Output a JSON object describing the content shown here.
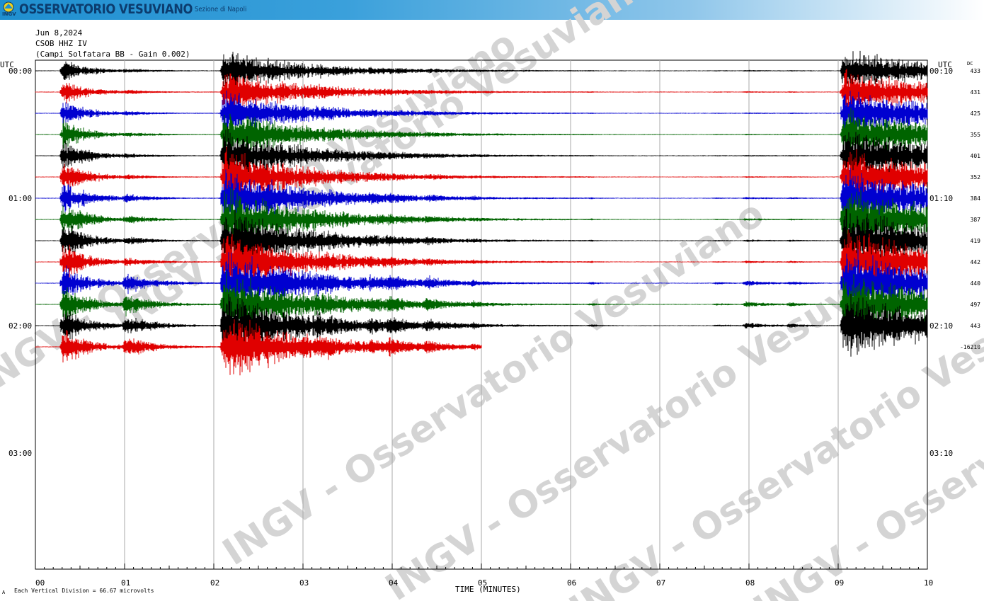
{
  "banner": {
    "logo_text": "INGV",
    "title": "OSSERVATORIO VESUVIANO",
    "subtitle": "Sezione di Napoli"
  },
  "header": {
    "date": "Jun 8,2024",
    "channel": "CSOB HHZ IV",
    "station": "(Campi Solfatara BB - Gain 0.002)"
  },
  "footer": {
    "mark": "A",
    "scale_note": "Each Vertical Division =   66.67 microvolts"
  },
  "colors": {
    "cycle": [
      "#000000",
      "#e00000",
      "#0000d0",
      "#006400"
    ],
    "grid": "#a8a8a8",
    "watermark": "#d4d4d4"
  },
  "chart_data": {
    "type": "line",
    "title": "",
    "xlabel": "TIME (MINUTES)",
    "ylabel": "",
    "x_ticks": [
      "00",
      "01",
      "02",
      "03",
      "04",
      "05",
      "06",
      "07",
      "08",
      "09",
      "10"
    ],
    "xlim": [
      0,
      10
    ],
    "left_axis_title": "UTC",
    "right_axis_title": "UTC",
    "dc_title": "DC",
    "left_time_labels": [
      {
        "row": 0,
        "label": "00:00"
      },
      {
        "row": 6,
        "label": "01:00"
      },
      {
        "row": 12,
        "label": "02:00"
      },
      {
        "row": 18,
        "label": "03:00"
      }
    ],
    "right_time_labels": [
      {
        "row": 0,
        "label": "00:10"
      },
      {
        "row": 6,
        "label": "01:10"
      },
      {
        "row": 12,
        "label": "02:10"
      },
      {
        "row": 18,
        "label": "03:10"
      }
    ],
    "dc_values": [
      "433",
      "431",
      "425",
      "355",
      "401",
      "352",
      "384",
      "387",
      "419",
      "442",
      "440",
      "497",
      "443",
      "-16210"
    ],
    "watermark_text": "INGV - Osservatorio Vesuviano",
    "row_minutes": 10,
    "current_row": 13,
    "trace_end_minute": 5.0,
    "events": [
      {
        "start_minute": 0.3,
        "amplitude": 24,
        "duration": 0.8
      },
      {
        "start_minute": 1.0,
        "amplitude": 12,
        "duration": 0.9
      },
      {
        "start_minute": 2.1,
        "amplitude": 40,
        "duration": 2.6
      },
      {
        "start_minute": 3.15,
        "amplitude": 6,
        "duration": 0.6
      },
      {
        "start_minute": 3.75,
        "amplitude": 5,
        "duration": 0.5
      },
      {
        "start_minute": 3.96,
        "amplitude": 7,
        "duration": 0.6
      },
      {
        "start_minute": 4.38,
        "amplitude": 6,
        "duration": 0.6
      },
      {
        "start_minute": 4.9,
        "amplitude": 3,
        "duration": 0.3
      },
      {
        "start_minute": 6.22,
        "amplitude": 1.5,
        "duration": 0.3
      },
      {
        "start_minute": 7.62,
        "amplitude": 1.5,
        "duration": 0.4
      },
      {
        "start_minute": 7.95,
        "amplitude": 3.5,
        "duration": 0.8
      },
      {
        "start_minute": 8.45,
        "amplitude": 2.5,
        "duration": 0.4
      },
      {
        "start_minute": 9.05,
        "amplitude": 40,
        "duration": 3.5
      }
    ]
  }
}
